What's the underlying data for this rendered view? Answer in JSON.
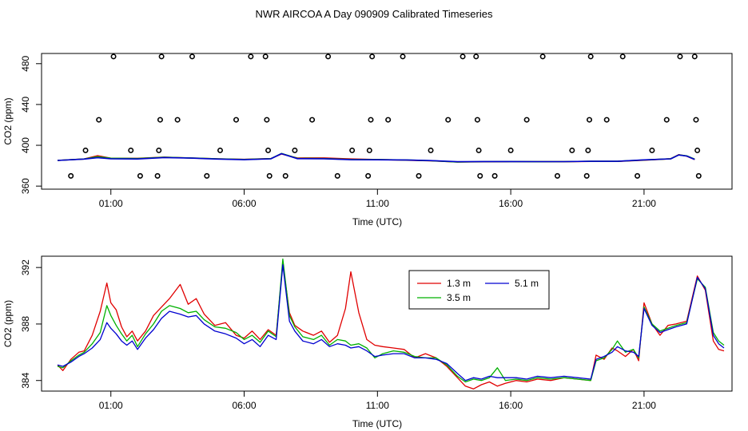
{
  "title": "NWR AIRCOA A  Day 090909  Calibrated Timeseries",
  "chart_data": [
    {
      "type": "scatter+line",
      "xlabel": "Time (UTC)",
      "ylabel": "CO2 (ppm)",
      "xlim": [
        -1.6,
        24.3
      ],
      "ylim": [
        357,
        490
      ],
      "xticks": [
        {
          "v": 1,
          "label": "01:00"
        },
        {
          "v": 6,
          "label": "06:00"
        },
        {
          "v": 11,
          "label": "11:00"
        },
        {
          "v": 16,
          "label": "16:00"
        },
        {
          "v": 21,
          "label": "21:00"
        }
      ],
      "yticks": [
        {
          "v": 360,
          "label": "360"
        },
        {
          "v": 400,
          "label": "400"
        },
        {
          "v": 440,
          "label": "440"
        },
        {
          "v": 480,
          "label": "480"
        }
      ],
      "markers": [
        [
          -0.5,
          370
        ],
        [
          0.05,
          395
        ],
        [
          0.55,
          425
        ],
        [
          1.1,
          487
        ],
        [
          1.75,
          395
        ],
        [
          2.1,
          370
        ],
        [
          2.75,
          370
        ],
        [
          2.8,
          395
        ],
        [
          2.85,
          425
        ],
        [
          2.9,
          487
        ],
        [
          3.5,
          425
        ],
        [
          4.05,
          487
        ],
        [
          4.6,
          370
        ],
        [
          5.1,
          395
        ],
        [
          5.7,
          425
        ],
        [
          6.25,
          487
        ],
        [
          6.8,
          487
        ],
        [
          6.85,
          425
        ],
        [
          6.9,
          395
        ],
        [
          6.95,
          370
        ],
        [
          7.55,
          370
        ],
        [
          7.9,
          395
        ],
        [
          8.55,
          425
        ],
        [
          9.15,
          487
        ],
        [
          9.5,
          370
        ],
        [
          10.05,
          395
        ],
        [
          10.65,
          370
        ],
        [
          10.7,
          395
        ],
        [
          10.75,
          425
        ],
        [
          10.8,
          487
        ],
        [
          11.4,
          425
        ],
        [
          11.95,
          487
        ],
        [
          12.55,
          370
        ],
        [
          13.0,
          395
        ],
        [
          13.65,
          425
        ],
        [
          14.2,
          487
        ],
        [
          14.7,
          487
        ],
        [
          14.75,
          425
        ],
        [
          14.8,
          395
        ],
        [
          14.85,
          370
        ],
        [
          15.4,
          370
        ],
        [
          16.0,
          395
        ],
        [
          16.6,
          425
        ],
        [
          17.2,
          487
        ],
        [
          17.75,
          370
        ],
        [
          18.3,
          395
        ],
        [
          18.85,
          370
        ],
        [
          18.9,
          395
        ],
        [
          18.95,
          425
        ],
        [
          19.0,
          487
        ],
        [
          19.6,
          425
        ],
        [
          20.2,
          487
        ],
        [
          20.75,
          370
        ],
        [
          21.3,
          395
        ],
        [
          21.85,
          425
        ],
        [
          22.35,
          487
        ],
        [
          22.9,
          487
        ],
        [
          22.95,
          425
        ],
        [
          23.0,
          395
        ],
        [
          23.05,
          370
        ]
      ],
      "series": [
        {
          "name": "1.3 m",
          "color": "#e00000",
          "x": [
            -1,
            0,
            0.5,
            1,
            2,
            3,
            4,
            5,
            6,
            7,
            7.4,
            8,
            9,
            10,
            11,
            12,
            13,
            14,
            15,
            16,
            17,
            18,
            19,
            20,
            21,
            22,
            22.3,
            22.6,
            22.9
          ],
          "values": [
            385.2,
            386.6,
            389.8,
            387.3,
            387.2,
            388.4,
            387.5,
            386.7,
            386.2,
            387.0,
            391.5,
            387.5,
            387.6,
            386.6,
            386.0,
            385.5,
            384.8,
            383.6,
            383.8,
            384.0,
            383.9,
            383.9,
            384.2,
            384.2,
            385.4,
            386.8,
            390.8,
            389.4,
            386.0
          ]
        },
        {
          "name": "3.5 m",
          "color": "#00b000",
          "x": [
            -1,
            0,
            0.5,
            1,
            2,
            3,
            4,
            5,
            6,
            7,
            7.4,
            8,
            9,
            10,
            11,
            12,
            13,
            14,
            15,
            16,
            17,
            18,
            19,
            20,
            21,
            22,
            22.3,
            22.6,
            22.9
          ],
          "values": [
            385.2,
            386.6,
            388.8,
            387.3,
            387.0,
            388.2,
            387.6,
            386.7,
            386.1,
            386.9,
            392.0,
            387.2,
            387.0,
            386.1,
            386.0,
            385.6,
            384.9,
            383.7,
            384.0,
            384.1,
            383.9,
            384.0,
            384.3,
            384.3,
            385.6,
            386.8,
            390.6,
            389.6,
            386.4
          ]
        },
        {
          "name": "5.1 m",
          "color": "#0000d0",
          "x": [
            -1,
            0,
            0.5,
            1,
            2,
            3,
            4,
            5,
            6,
            7,
            7.4,
            8,
            9,
            10,
            11,
            12,
            13,
            14,
            15,
            16,
            17,
            18,
            19,
            20,
            21,
            22,
            22.3,
            22.6,
            22.9
          ],
          "values": [
            385.2,
            386.5,
            387.8,
            386.8,
            386.6,
            388.0,
            387.4,
            386.5,
            385.9,
            386.7,
            391.8,
            386.9,
            386.8,
            385.9,
            385.8,
            385.6,
            385.0,
            383.9,
            384.1,
            384.1,
            384.0,
            384.0,
            384.3,
            384.3,
            385.7,
            386.7,
            390.5,
            389.5,
            386.2
          ]
        }
      ]
    },
    {
      "type": "line",
      "xlabel": "Time (UTC)",
      "ylabel": "CO2 (ppm)",
      "xlim": [
        -1.6,
        24.3
      ],
      "ylim": [
        383.25,
        392.8
      ],
      "xticks": [
        {
          "v": 1,
          "label": "01:00"
        },
        {
          "v": 6,
          "label": "06:00"
        },
        {
          "v": 11,
          "label": "11:00"
        },
        {
          "v": 16,
          "label": "16:00"
        },
        {
          "v": 21,
          "label": "21:00"
        }
      ],
      "yticks": [
        {
          "v": 384,
          "label": "384"
        },
        {
          "v": 388,
          "label": "388"
        },
        {
          "v": 392,
          "label": "392"
        }
      ],
      "legend": {
        "position": "top-center",
        "entries": [
          "1.3 m",
          "5.1 m",
          "3.5 m"
        ]
      },
      "series": [
        {
          "name": "1.3 m",
          "color": "#e00000",
          "x": [
            -1,
            -0.8,
            -0.5,
            -0.2,
            0,
            0.3,
            0.6,
            0.85,
            1.0,
            1.2,
            1.4,
            1.6,
            1.8,
            2.0,
            2.3,
            2.6,
            2.9,
            3.2,
            3.6,
            3.9,
            4.2,
            4.5,
            4.9,
            5.3,
            5.7,
            6.0,
            6.3,
            6.6,
            6.9,
            7.2,
            7.45,
            7.7,
            7.9,
            8.2,
            8.6,
            8.9,
            9.2,
            9.5,
            9.8,
            10.0,
            10.3,
            10.6,
            10.9,
            11.2,
            11.6,
            12.0,
            12.4,
            12.8,
            13.2,
            13.6,
            14.0,
            14.3,
            14.6,
            14.9,
            15.2,
            15.5,
            15.8,
            16.2,
            16.6,
            17.0,
            17.5,
            18.0,
            18.5,
            19.0,
            19.2,
            19.5,
            19.8,
            20.0,
            20.3,
            20.6,
            20.8,
            21.0,
            21.3,
            21.6,
            21.9,
            22.2,
            22.6,
            23.0,
            23.3,
            23.6,
            23.8,
            24.0
          ],
          "values": [
            385.1,
            384.7,
            385.5,
            386.0,
            386.1,
            387.2,
            388.9,
            390.9,
            389.5,
            389.0,
            387.8,
            387.1,
            387.5,
            386.8,
            387.5,
            388.6,
            389.2,
            389.8,
            390.8,
            389.4,
            389.8,
            388.7,
            387.9,
            388.1,
            387.2,
            387.0,
            387.5,
            386.9,
            387.6,
            387.2,
            392.3,
            388.8,
            387.9,
            387.5,
            387.2,
            387.5,
            386.7,
            387.2,
            389.1,
            391.7,
            388.8,
            386.9,
            386.5,
            386.4,
            386.3,
            386.2,
            385.6,
            385.9,
            385.6,
            385.0,
            384.2,
            383.6,
            383.4,
            383.7,
            383.9,
            383.6,
            383.8,
            384.0,
            383.9,
            384.1,
            384.0,
            384.2,
            384.1,
            384.0,
            385.8,
            385.5,
            386.3,
            386.1,
            385.7,
            386.2,
            385.4,
            389.5,
            388.0,
            387.2,
            387.9,
            388.0,
            388.2,
            391.4,
            390.4,
            386.8,
            386.2,
            386.1
          ]
        },
        {
          "name": "3.5 m",
          "color": "#00b000",
          "x": [
            -1,
            -0.8,
            -0.5,
            -0.2,
            0,
            0.3,
            0.6,
            0.85,
            1.0,
            1.2,
            1.4,
            1.6,
            1.8,
            2.0,
            2.3,
            2.6,
            2.9,
            3.2,
            3.6,
            3.9,
            4.2,
            4.5,
            4.9,
            5.3,
            5.7,
            6.0,
            6.3,
            6.6,
            6.9,
            7.2,
            7.45,
            7.7,
            7.9,
            8.2,
            8.6,
            8.9,
            9.2,
            9.5,
            9.8,
            10.0,
            10.3,
            10.6,
            10.9,
            11.2,
            11.6,
            12.0,
            12.4,
            12.8,
            13.2,
            13.6,
            14.0,
            14.3,
            14.6,
            14.9,
            15.2,
            15.5,
            15.8,
            16.2,
            16.6,
            17.0,
            17.5,
            18.0,
            18.5,
            19.0,
            19.2,
            19.5,
            19.8,
            20.0,
            20.3,
            20.6,
            20.8,
            21.0,
            21.3,
            21.6,
            21.9,
            22.2,
            22.6,
            23.0,
            23.3,
            23.6,
            23.8,
            24.0
          ],
          "values": [
            385.0,
            384.9,
            385.4,
            385.8,
            386.0,
            386.6,
            387.4,
            389.3,
            388.6,
            387.9,
            387.3,
            386.8,
            387.2,
            386.4,
            387.3,
            388.0,
            388.9,
            389.3,
            389.1,
            388.8,
            388.9,
            388.3,
            387.8,
            387.7,
            387.4,
            386.9,
            387.2,
            386.7,
            387.5,
            387.1,
            392.6,
            388.6,
            387.8,
            387.1,
            386.9,
            387.2,
            386.5,
            386.9,
            386.8,
            386.5,
            386.6,
            386.3,
            385.6,
            385.9,
            386.1,
            386.0,
            385.7,
            385.6,
            385.6,
            385.1,
            384.3,
            383.9,
            384.1,
            384.0,
            384.2,
            384.9,
            384.0,
            384.1,
            384.0,
            384.2,
            384.1,
            384.2,
            384.1,
            384.0,
            385.4,
            385.6,
            386.2,
            386.8,
            386.0,
            386.2,
            385.6,
            389.2,
            388.0,
            387.5,
            387.7,
            387.9,
            388.1,
            391.2,
            390.6,
            387.4,
            386.8,
            386.5
          ]
        },
        {
          "name": "5.1 m",
          "color": "#0000d0",
          "x": [
            -1,
            -0.8,
            -0.5,
            -0.2,
            0,
            0.3,
            0.6,
            0.85,
            1.0,
            1.2,
            1.4,
            1.6,
            1.8,
            2.0,
            2.3,
            2.6,
            2.9,
            3.2,
            3.6,
            3.9,
            4.2,
            4.5,
            4.9,
            5.3,
            5.7,
            6.0,
            6.3,
            6.6,
            6.9,
            7.2,
            7.45,
            7.7,
            7.9,
            8.2,
            8.6,
            8.9,
            9.2,
            9.5,
            9.8,
            10.0,
            10.3,
            10.6,
            10.9,
            11.2,
            11.6,
            12.0,
            12.4,
            12.8,
            13.2,
            13.6,
            14.0,
            14.3,
            14.6,
            14.9,
            15.2,
            15.5,
            15.8,
            16.2,
            16.6,
            17.0,
            17.5,
            18.0,
            18.5,
            19.0,
            19.2,
            19.5,
            19.8,
            20.0,
            20.3,
            20.6,
            20.8,
            21.0,
            21.3,
            21.6,
            21.9,
            22.2,
            22.6,
            23.0,
            23.3,
            23.6,
            23.8,
            24.0
          ],
          "values": [
            385.1,
            385.0,
            385.3,
            385.7,
            385.9,
            386.3,
            386.9,
            388.1,
            387.7,
            387.3,
            386.8,
            386.5,
            386.8,
            386.2,
            387.0,
            387.6,
            388.4,
            388.9,
            388.7,
            388.5,
            388.6,
            388.0,
            387.5,
            387.3,
            387.0,
            386.6,
            386.9,
            386.4,
            387.2,
            386.9,
            392.2,
            388.2,
            387.5,
            386.8,
            386.6,
            386.9,
            386.4,
            386.6,
            386.5,
            386.3,
            386.4,
            386.1,
            385.7,
            385.8,
            385.9,
            385.9,
            385.6,
            385.6,
            385.5,
            385.2,
            384.5,
            384.0,
            384.2,
            384.1,
            384.3,
            384.2,
            384.2,
            384.2,
            384.1,
            384.3,
            384.2,
            384.3,
            384.2,
            384.1,
            385.5,
            385.7,
            386.0,
            386.4,
            386.1,
            386.0,
            385.7,
            389.1,
            387.9,
            387.4,
            387.6,
            387.8,
            388.0,
            391.3,
            390.5,
            387.2,
            386.6,
            386.3
          ]
        }
      ]
    }
  ]
}
